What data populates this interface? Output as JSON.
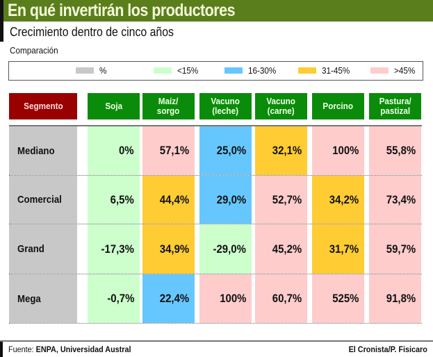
{
  "header": {
    "title": "En qué invertirán los productores",
    "subtitle": "Crecimiento dentro de cinco años",
    "comparison_label": "Comparación"
  },
  "legend": [
    {
      "label": "%",
      "color": "#c8c8c8"
    },
    {
      "label": "<15%",
      "color": "#ccffcc"
    },
    {
      "label": "16-30%",
      "color": "#66c7ff"
    },
    {
      "label": "31-45%",
      "color": "#ffcc33"
    },
    {
      "label": ">45%",
      "color": "#ffcccc"
    }
  ],
  "footer": {
    "source_prefix": "Fuente:",
    "source": "ENPA, Universidad Austral",
    "credit": "El Cronista/P. Fisicaro"
  },
  "chart_data": {
    "type": "table",
    "title": "En qué invertirán los productores",
    "subtitle": "Crecimiento dentro de cinco años",
    "row_header": "Segmento",
    "columns": [
      "Soja",
      "Maíz/\nsorgo",
      "Vacuno\n(leche)",
      "Vacuno\n(carne)",
      "Porcino",
      "Pastura/\npastizal"
    ],
    "rows": [
      {
        "segment": "Mediano",
        "values": [
          "0%",
          "57,1%",
          "25,0%",
          "32,1%",
          "100%",
          "55,8%"
        ],
        "colors": [
          "#ccffcc",
          "#ffcccc",
          "#66c7ff",
          "#ffcc33",
          "#ffcccc",
          "#ffcccc"
        ]
      },
      {
        "segment": "Comercial",
        "values": [
          "6,5%",
          "44,4%",
          "29,0%",
          "52,7%",
          "34,2%",
          "73,4%"
        ],
        "colors": [
          "#ccffcc",
          "#ffcc33",
          "#66c7ff",
          "#ffcccc",
          "#ffcc33",
          "#ffcccc"
        ]
      },
      {
        "segment": "Grand",
        "values": [
          "-17,3%",
          "34,9%",
          "-29,0%",
          "45,2%",
          "31,7%",
          "59,7%"
        ],
        "colors": [
          "#ccffcc",
          "#ffcc33",
          "#ccffcc",
          "#ffcccc",
          "#ffcc33",
          "#ffcccc"
        ]
      },
      {
        "segment": "Mega",
        "values": [
          "-0,7%",
          "22,4%",
          "100%",
          "60,7%",
          "525%",
          "91,8%"
        ],
        "colors": [
          "#ccffcc",
          "#66c7ff",
          "#ffcccc",
          "#ffcccc",
          "#ffcccc",
          "#ffcccc"
        ]
      }
    ]
  }
}
